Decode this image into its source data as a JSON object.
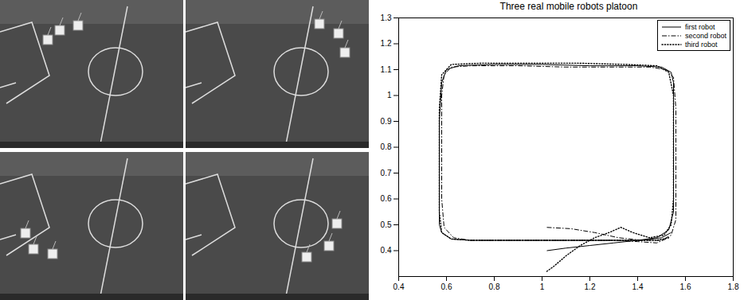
{
  "chart_data": {
    "type": "line",
    "title": "Three real mobile robots platoon",
    "xlim": [
      0.4,
      1.8
    ],
    "xticks": [
      0.4,
      0.6,
      0.8,
      1,
      1.2,
      1.4,
      1.6,
      1.8
    ],
    "ylim": [
      0.3,
      1.3
    ],
    "yticks": [
      0.4,
      0.5,
      0.6,
      0.7,
      0.8,
      0.9,
      1,
      1.1,
      1.2,
      1.3
    ],
    "legend": "upper right",
    "grid": false,
    "series": [
      {
        "name": "first robot",
        "color": "#000000",
        "line_style": "solid",
        "x": [
          1.02,
          1.1,
          1.2,
          1.3,
          1.4,
          1.48,
          1.53,
          1.55,
          1.55,
          1.55,
          1.55,
          1.54,
          1.5,
          1.4,
          1.2,
          1.0,
          0.8,
          0.65,
          0.6,
          0.58,
          0.57,
          0.57,
          0.57,
          0.58,
          0.62,
          0.7,
          0.9,
          1.1,
          1.3,
          1.42,
          1.5,
          1.54
        ],
        "values": [
          0.4,
          0.41,
          0.42,
          0.43,
          0.44,
          0.45,
          0.48,
          0.55,
          0.7,
          0.9,
          1.05,
          1.09,
          1.11,
          1.115,
          1.115,
          1.12,
          1.12,
          1.115,
          1.1,
          1.05,
          0.9,
          0.7,
          0.5,
          0.47,
          0.445,
          0.44,
          0.44,
          0.44,
          0.44,
          0.44,
          0.45,
          0.47
        ]
      },
      {
        "name": "second robot",
        "color": "#000000",
        "line_style": "dashdot",
        "x": [
          1.02,
          1.12,
          1.22,
          1.32,
          1.42,
          1.5,
          1.54,
          1.56,
          1.56,
          1.56,
          1.55,
          1.52,
          1.45,
          1.3,
          1.1,
          0.9,
          0.7,
          0.62,
          0.59,
          0.58,
          0.58,
          0.58,
          0.59,
          0.63,
          0.7,
          0.9,
          1.1,
          1.3,
          1.4,
          1.48,
          1.53
        ],
        "values": [
          0.49,
          0.485,
          0.47,
          0.45,
          0.44,
          0.44,
          0.46,
          0.52,
          0.7,
          0.95,
          1.07,
          1.1,
          1.11,
          1.11,
          1.11,
          1.115,
          1.115,
          1.11,
          1.08,
          1.0,
          0.8,
          0.6,
          0.49,
          0.45,
          0.44,
          0.44,
          0.44,
          0.44,
          0.435,
          0.43,
          0.45
        ]
      },
      {
        "name": "third robot",
        "color": "#000000",
        "line_style": "dotted",
        "x": [
          1.02,
          1.05,
          1.1,
          1.16,
          1.22,
          1.28,
          1.33,
          1.38,
          1.45,
          1.51,
          1.54,
          1.55,
          1.55,
          1.55,
          1.53,
          1.48,
          1.35,
          1.15,
          0.95,
          0.75,
          0.62,
          0.58,
          0.57,
          0.57,
          0.57,
          0.58,
          0.62,
          0.7,
          0.9,
          1.1,
          1.3,
          1.4,
          1.48,
          1.53
        ],
        "values": [
          0.32,
          0.34,
          0.38,
          0.42,
          0.45,
          0.47,
          0.49,
          0.47,
          0.45,
          0.46,
          0.5,
          0.6,
          0.8,
          1.0,
          1.09,
          1.115,
          1.12,
          1.125,
          1.125,
          1.125,
          1.12,
          1.08,
          0.95,
          0.75,
          0.55,
          0.47,
          0.445,
          0.44,
          0.44,
          0.44,
          0.44,
          0.44,
          0.44,
          0.45
        ]
      }
    ]
  }
}
